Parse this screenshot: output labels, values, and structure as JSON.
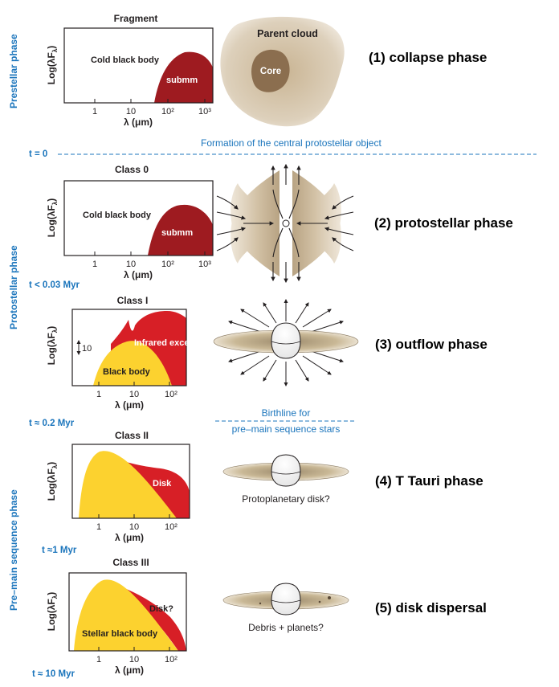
{
  "colors": {
    "blue": "#1b75bc",
    "submm_red": "#9e1b20",
    "infrared_red": "#d71f26",
    "black_body_yellow": "#fcd22f",
    "cloud_beige": "#c8b497",
    "core_brown": "#8b6e4f"
  },
  "side_labels": {
    "prestellar": "Prestellar phase",
    "protostellar": "Protostellar phase",
    "premain": "Pre–main sequence phase"
  },
  "times": {
    "t0": "t = 0",
    "t003": "t < 0.03 Myr",
    "t02": "t ≈ 0.2 Myr",
    "t1": "t ≈1 Myr",
    "t10": "t ≈ 10 Myr"
  },
  "notes": {
    "formation": "Formation of the central protostellar object",
    "birthline_1": "Birthline for",
    "birthline_2": "pre–main sequence stars"
  },
  "panels": [
    {
      "title": "Fragment",
      "ylabel": "Log(λFλ)",
      "xlabel": "λ (μm)",
      "ticks": [
        "1",
        "10",
        "10²",
        "10³"
      ],
      "labels": {
        "black_body": "Cold black body",
        "component": "submm"
      }
    },
    {
      "title": "Class 0",
      "ylabel": "Log(λFλ)",
      "xlabel": "λ (μm)",
      "ticks": [
        "1",
        "10",
        "10²",
        "10³"
      ],
      "labels": {
        "black_body": "Cold black body",
        "component": "submm"
      }
    },
    {
      "title": "Class I",
      "ylabel": "Log(λFλ)",
      "xlabel": "λ (μm)",
      "ticks": [
        "1",
        "10",
        "10²"
      ],
      "labels": {
        "black_body": "Black body",
        "component": "Infrared excess",
        "scale": "10"
      }
    },
    {
      "title": "Class II",
      "ylabel": "Log(λFλ)",
      "xlabel": "λ (μm)",
      "ticks": [
        "1",
        "10",
        "10²"
      ],
      "labels": {
        "component": "Disk"
      }
    },
    {
      "title": "Class III",
      "ylabel": "Log(λFλ)",
      "xlabel": "λ (μm)",
      "ticks": [
        "1",
        "10",
        "10²"
      ],
      "labels": {
        "black_body": "Stellar black body",
        "component": "Disk?"
      }
    }
  ],
  "illustrations": {
    "parent_cloud": "Parent cloud",
    "core": "Core",
    "protoplanetary": "Protoplanetary disk?",
    "debris": "Debris + planets?"
  },
  "phases": [
    "(1) collapse phase",
    "(2) protostellar phase",
    "(3) outflow phase",
    "(4) T Tauri phase",
    "(5) disk dispersal"
  ]
}
